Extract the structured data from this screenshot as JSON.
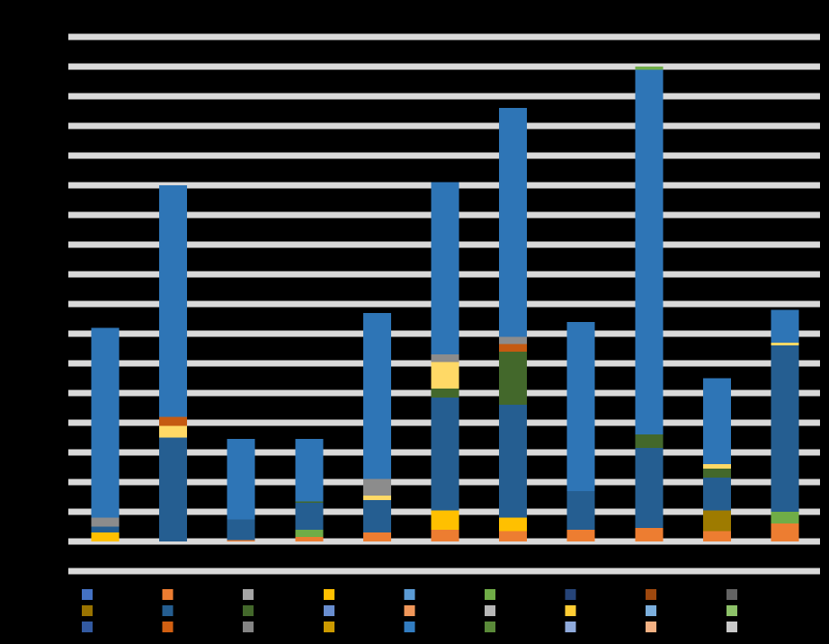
{
  "chart_data": {
    "type": "bar",
    "stacked": true,
    "title": "",
    "xlabel": "",
    "ylabel": "",
    "grid": true,
    "legend_placement": "bottom",
    "ylim": [
      -1,
      17
    ],
    "gridlines": [
      -1,
      0,
      1,
      2,
      3,
      4,
      5,
      6,
      7,
      8,
      9,
      10,
      11,
      12,
      13,
      14,
      15,
      16,
      17
    ],
    "categories": [
      "",
      "",
      "",
      "",
      "",
      "",
      "",
      "",
      "",
      "",
      ""
    ],
    "series": [
      {
        "color": "#ed7d31",
        "values": [
          0,
          0,
          0.05,
          0.15,
          0.3,
          0.4,
          0.35,
          0.4,
          0.45,
          0.35,
          0.6
        ]
      },
      {
        "color": "#70ad47",
        "values": [
          0,
          0,
          0,
          0.25,
          0,
          0,
          0,
          0,
          0,
          0,
          0.4
        ]
      },
      {
        "color": "#ffc000",
        "values": [
          0.3,
          0,
          0,
          0,
          0,
          0.65,
          0.45,
          0,
          0,
          0,
          0
        ]
      },
      {
        "color": "#9e7b00",
        "values": [
          0,
          0,
          0,
          0,
          0,
          0,
          0,
          0,
          0,
          0.7,
          0
        ]
      },
      {
        "color": "#255e91",
        "values": [
          0.2,
          3.5,
          0.7,
          0.9,
          1.1,
          3.8,
          3.8,
          1.3,
          2.7,
          1.1,
          5.6
        ]
      },
      {
        "color": "#43682b",
        "values": [
          0,
          0,
          0,
          0.05,
          0,
          0.3,
          1.8,
          0,
          0.45,
          0.3,
          0
        ]
      },
      {
        "color": "#ffd966",
        "values": [
          0,
          0.4,
          0,
          0,
          0.15,
          0.9,
          0,
          0,
          0,
          0.15,
          0.1
        ]
      },
      {
        "color": "#c55a11",
        "values": [
          0,
          0.3,
          0,
          0,
          0,
          0,
          0.25,
          0,
          0,
          0,
          0
        ]
      },
      {
        "color": "#8c8c8c",
        "values": [
          0.3,
          0,
          0,
          0,
          0.55,
          0.25,
          0.25,
          0,
          0,
          0,
          0
        ]
      },
      {
        "color": "#2e75b6",
        "values": [
          6.4,
          7.8,
          2.7,
          2.1,
          5.6,
          5.8,
          7.7,
          5.7,
          12.3,
          2.9,
          1.1
        ]
      },
      {
        "color": "#70ad47",
        "values": [
          0,
          0,
          0,
          0,
          0,
          0,
          0,
          0,
          0.1,
          0,
          0
        ]
      }
    ],
    "legend_colors": [
      "#4472c4",
      "#ed7d31",
      "#a5a5a5",
      "#ffc000",
      "#5b9bd5",
      "#70ad47",
      "#264478",
      "#9e480e",
      "#636363",
      "#997300",
      "#255e91",
      "#43682b",
      "#698ed0",
      "#f1975a",
      "#b7b7b7",
      "#ffcd33",
      "#7cafdd",
      "#8cc168",
      "#335aa1",
      "#d26012",
      "#848484",
      "#cc9a00",
      "#327dc2",
      "#5a8a39",
      "#8faadc",
      "#f4b183",
      "#c9c9c9"
    ]
  }
}
